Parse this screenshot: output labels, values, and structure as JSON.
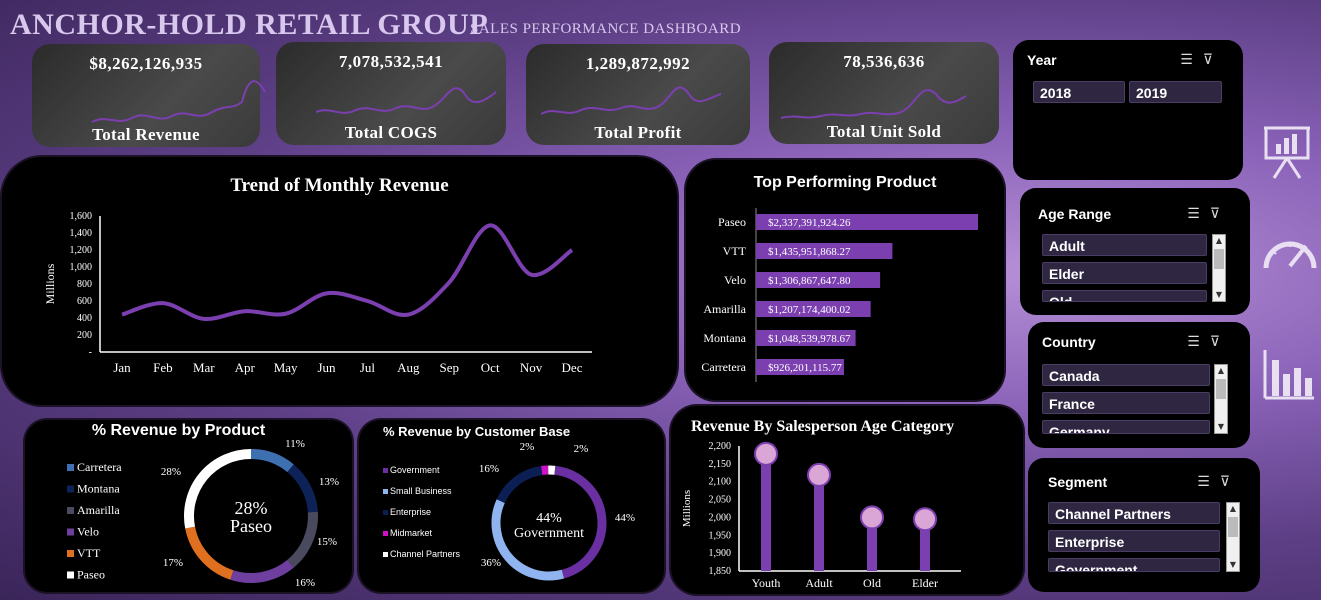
{
  "header": {
    "title": "ANCHOR-HOLD RETAIL GROUP",
    "subtitle": "SALES PERFORMANCE DASHBOARD"
  },
  "kpis": [
    {
      "value": "$8,262,126,935",
      "label": "Total Revenue"
    },
    {
      "value": "7,078,532,541",
      "label": "Total COGS"
    },
    {
      "value": "1,289,872,992",
      "label": "Total Profit"
    },
    {
      "value": "78,536,636",
      "label": "Total Unit Sold"
    }
  ],
  "slicers": {
    "year": {
      "title": "Year",
      "items": [
        "2018",
        "2019"
      ]
    },
    "age_range": {
      "title": "Age Range",
      "items": [
        "Adult",
        "Elder",
        "Old"
      ]
    },
    "country": {
      "title": "Country",
      "items": [
        "Canada",
        "France",
        "Germany"
      ]
    },
    "segment": {
      "title": "Segment",
      "items": [
        "Channel Partners",
        "Enterprise",
        "Government"
      ]
    }
  },
  "side_icons": [
    "presentation-icon",
    "gauge-icon",
    "bar-chart-icon"
  ],
  "colors": {
    "accent": "#7b3fb0",
    "bg": "#000000"
  },
  "chart_data": [
    {
      "id": "monthly_trend",
      "type": "line",
      "title": "Trend of Monthly Revenue",
      "ylabel": "Millions",
      "categories": [
        "Jan",
        "Feb",
        "Mar",
        "Apr",
        "May",
        "Jun",
        "Jul",
        "Aug",
        "Sep",
        "Oct",
        "Nov",
        "Dec"
      ],
      "values": [
        440,
        575,
        390,
        480,
        450,
        690,
        600,
        440,
        820,
        1490,
        910,
        1200
      ],
      "yticks": [
        "1,600",
        "1,400",
        "1,200",
        "1,000",
        "800",
        "600",
        "400",
        "200",
        "-"
      ],
      "ylim": [
        0,
        1600
      ]
    },
    {
      "id": "top_products",
      "type": "bar",
      "title": "Top Performing Product",
      "categories": [
        "Paseo",
        "VTT",
        "Velo",
        "Amarilla",
        "Montana",
        "Carretera"
      ],
      "values": [
        2337391924.26,
        1435951868.27,
        1306867647.8,
        1207174400.02,
        1048539978.67,
        926201115.77
      ],
      "labels": [
        "$2,337,391,924.26",
        "$1,435,951,868.27",
        "$1,306,867,647.80",
        "$1,207,174,400.02",
        "$1,048,539,978.67",
        "$926,201,115.77"
      ]
    },
    {
      "id": "revenue_by_product",
      "type": "pie",
      "title": "% Revenue by Product",
      "categories": [
        "Carretera",
        "Montana",
        "Amarilla",
        "Velo",
        "VTT",
        "Paseo"
      ],
      "values": [
        11,
        13,
        15,
        16,
        17,
        28
      ],
      "labels": [
        "11%",
        "13%",
        "15%",
        "16%",
        "17%",
        "28%"
      ],
      "colors": [
        "#3e6fb0",
        "#0d2257",
        "#4a4a5e",
        "#6e3f9e",
        "#e07020",
        "#ffffff"
      ],
      "center_value": "28%",
      "center_label": "Paseo"
    },
    {
      "id": "revenue_by_customer",
      "type": "pie",
      "title": "% Revenue by Customer Base",
      "categories": [
        "Government",
        "Small Business",
        "Enterprise",
        "Midmarket",
        "Channel Partners"
      ],
      "values": [
        44,
        36,
        16,
        2,
        2
      ],
      "labels": [
        "44%",
        "36%",
        "16%",
        "2%",
        "2%"
      ],
      "colors": [
        "#6a2fa0",
        "#8fb4ef",
        "#0c1f55",
        "#d010c8",
        "#ffffff"
      ],
      "center_value": "44%",
      "center_label": "Government"
    },
    {
      "id": "age_category",
      "type": "scatter",
      "title": "Revenue By Salesperson Age Category",
      "ylabel": "Millions",
      "categories": [
        "Youth",
        "Adult",
        "Old",
        "Elder"
      ],
      "values": [
        2178,
        2119,
        2000,
        1995
      ],
      "yticks": [
        "2,200",
        "2,150",
        "2,100",
        "2,050",
        "2,000",
        "1,950",
        "1,900",
        "1,850"
      ],
      "ylim": [
        1850,
        2200
      ]
    }
  ]
}
